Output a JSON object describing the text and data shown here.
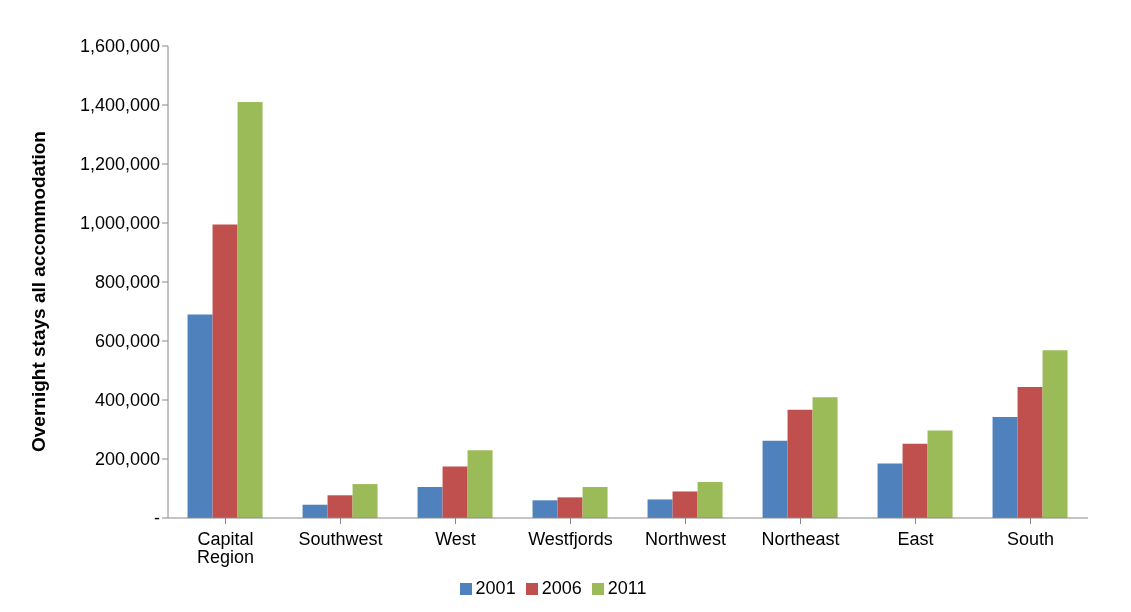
{
  "chart_data": {
    "type": "bar",
    "ylabel": "Overnight stays all accommodation",
    "categories": [
      "Capital Region",
      "Southwest",
      "West",
      "Westfjords",
      "Northwest",
      "Northeast",
      "East",
      "South"
    ],
    "series": [
      {
        "name": "2001",
        "color": "#4f81bd",
        "values": [
          690000,
          45000,
          105000,
          60000,
          63000,
          262000,
          185000,
          342000
        ]
      },
      {
        "name": "2006",
        "color": "#c0504d",
        "values": [
          995000,
          77000,
          175000,
          70000,
          90000,
          367000,
          252000,
          444000
        ]
      },
      {
        "name": "2011",
        "color": "#9bbb59",
        "values": [
          1410000,
          115000,
          230000,
          105000,
          122000,
          409000,
          297000,
          569000
        ]
      }
    ],
    "ylim": [
      0,
      1600000
    ],
    "yticks": [
      {
        "value": 0,
        "label": "-"
      },
      {
        "value": 200000,
        "label": "200,000"
      },
      {
        "value": 400000,
        "label": "400,000"
      },
      {
        "value": 600000,
        "label": "600,000"
      },
      {
        "value": 800000,
        "label": "800,000"
      },
      {
        "value": 1000000,
        "label": "1,000,000"
      },
      {
        "value": 1200000,
        "label": "1,200,000"
      },
      {
        "value": 1400000,
        "label": "1,400,000"
      },
      {
        "value": 1600000,
        "label": "1,600,000"
      }
    ],
    "grid": false,
    "legend": "bottom"
  }
}
